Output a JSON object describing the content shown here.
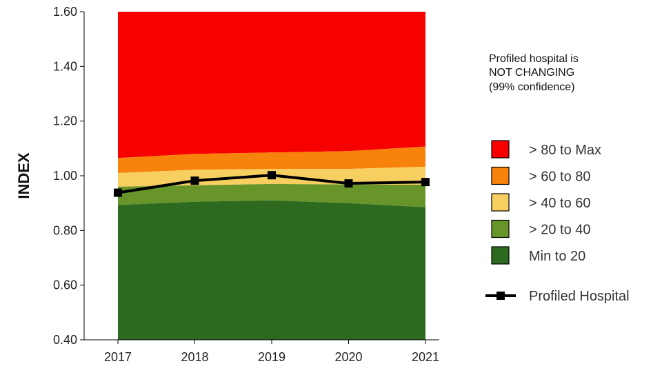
{
  "status_text": [
    "Profiled hospital is",
    "NOT CHANGING",
    "(99% confidence)"
  ],
  "chart_data": {
    "type": "area",
    "ylabel": "INDEX",
    "xlabel": "",
    "ylim": [
      0.4,
      1.6
    ],
    "yticks": [
      "0.40",
      "0.60",
      "0.80",
      "1.00",
      "1.20",
      "1.40",
      "1.60"
    ],
    "categories": [
      "2017",
      "2018",
      "2019",
      "2020",
      "2021"
    ],
    "bands": [
      {
        "name": "Min to 20",
        "color": "#2d6a1f",
        "upper": [
          0.893,
          0.905,
          0.91,
          0.9,
          0.885
        ]
      },
      {
        "name": "> 20 to 40",
        "color": "#67952a",
        "upper": [
          0.96,
          0.965,
          0.97,
          0.968,
          0.967
        ]
      },
      {
        "name": "> 40 to 60",
        "color": "#f7cf60",
        "upper": [
          1.01,
          1.022,
          1.025,
          1.025,
          1.033
        ]
      },
      {
        "name": "> 60 to 80",
        "color": "#f8830c",
        "upper": [
          1.065,
          1.08,
          1.085,
          1.09,
          1.107
        ]
      },
      {
        "name": "> 80 to Max",
        "color": "#f70000",
        "upper": [
          1.6,
          1.6,
          1.6,
          1.6,
          1.6
        ]
      }
    ],
    "series": [
      {
        "name": "Profiled Hospital",
        "color": "#000000",
        "values": [
          0.938,
          0.982,
          1.002,
          0.972,
          0.977
        ]
      }
    ],
    "legend_placement": "right",
    "grid": false
  }
}
